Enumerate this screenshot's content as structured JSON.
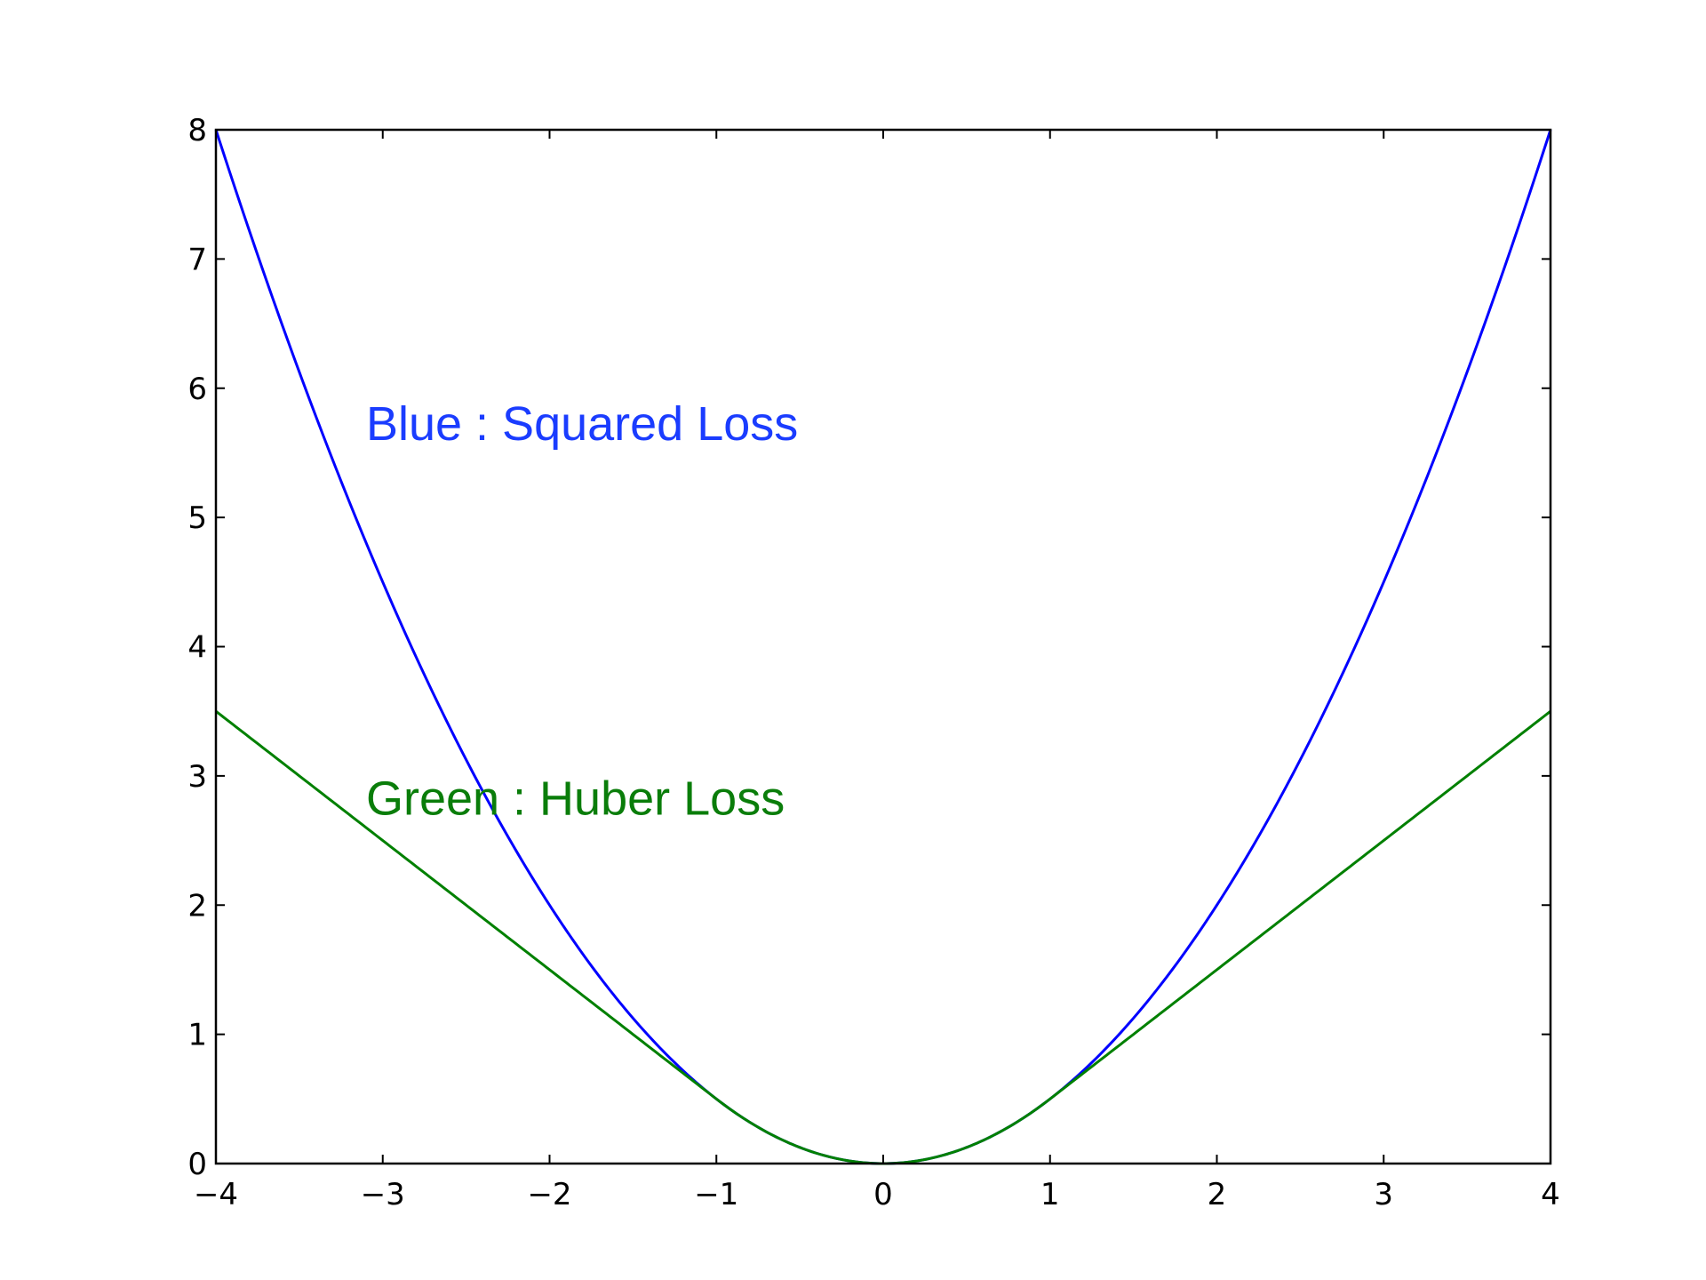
{
  "chart_data": {
    "type": "line",
    "title": "",
    "xlabel": "",
    "ylabel": "",
    "xlim": [
      -4,
      4
    ],
    "ylim": [
      0,
      8
    ],
    "x_ticks": [
      -4,
      -3,
      -2,
      -1,
      0,
      1,
      2,
      3,
      4
    ],
    "x_tick_labels": [
      "−4",
      "−3",
      "−2",
      "−1",
      "0",
      "1",
      "2",
      "3",
      "4"
    ],
    "y_ticks": [
      0,
      1,
      2,
      3,
      4,
      5,
      6,
      7,
      8
    ],
    "y_tick_labels": [
      "0",
      "1",
      "2",
      "3",
      "4",
      "5",
      "6",
      "7",
      "8"
    ],
    "grid": false,
    "series": [
      {
        "color": "#0000ff",
        "function": "0.5 * x^2",
        "x": [
          -4,
          -3.5,
          -3,
          -2.5,
          -2,
          -1.5,
          -1,
          -0.5,
          0,
          0.5,
          1,
          1.5,
          2,
          2.5,
          3,
          3.5,
          4
        ],
        "y": [
          8,
          6.125,
          4.5,
          3.125,
          2,
          1.125,
          0.5,
          0.125,
          0,
          0.125,
          0.5,
          1.125,
          2,
          3.125,
          4.5,
          6.125,
          8
        ]
      },
      {
        "color": "#008000",
        "function": "Huber loss, delta = 1",
        "x": [
          -4,
          -3,
          -2,
          -1,
          -0.5,
          0,
          0.5,
          1,
          2,
          3,
          4
        ],
        "y": [
          3.5,
          2.5,
          1.5,
          0.5,
          0.125,
          0,
          0.125,
          0.5,
          1.5,
          2.5,
          3.5
        ]
      }
    ],
    "annotations": [
      {
        "text": "Blue : Squared Loss",
        "x": -3.1,
        "y": 5.6,
        "color": "#1a3cff"
      },
      {
        "text": "Green : Huber Loss",
        "x": -3.1,
        "y": 2.7,
        "color": "#0a7d0a"
      }
    ]
  }
}
